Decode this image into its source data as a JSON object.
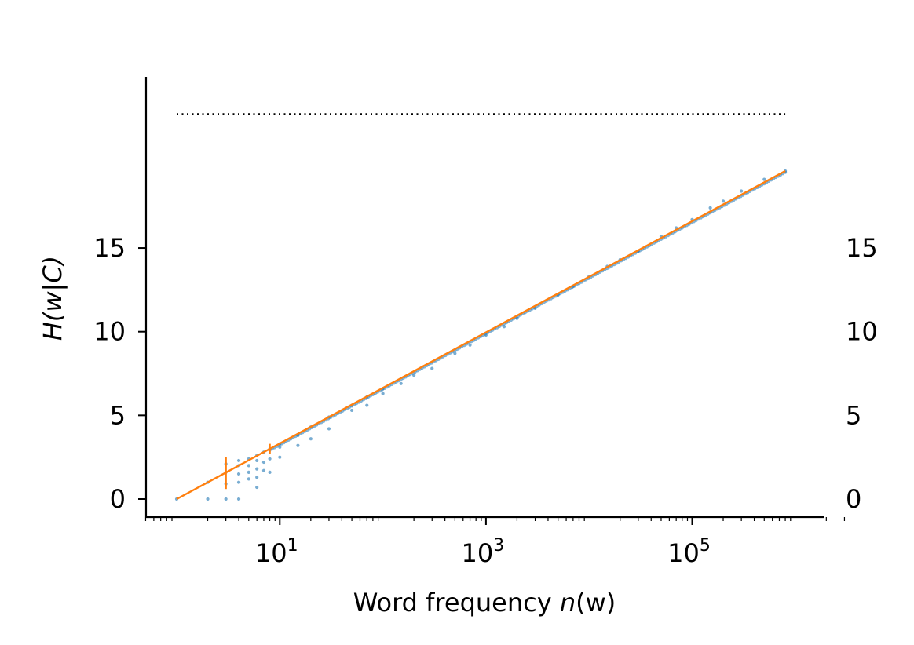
{
  "chart_data": {
    "type": "scatter",
    "xscale": "log",
    "xlim": [
      0.5,
      3000000
    ],
    "ylim": [
      -1,
      25
    ],
    "xlabel": {
      "prefix": "Word frequency ",
      "var": "n",
      "arg": "(w)"
    },
    "ylabel": "H(w|C)",
    "x_ticks": [
      {
        "value": 10,
        "base": "10",
        "exp": "1"
      },
      {
        "value": 1000,
        "base": "10",
        "exp": "3"
      },
      {
        "value": 100000,
        "base": "10",
        "exp": "5"
      }
    ],
    "y_ticks": [
      0,
      5,
      10,
      15
    ],
    "y_ticks_right": [
      "15",
      "10",
      "5",
      "0"
    ],
    "grid": false,
    "legend": "none",
    "colors": {
      "scatter": "#1f77b4",
      "fit": "#ff7f0e",
      "reference": "#000000"
    },
    "reference_line": {
      "style": "dotted",
      "x": [
        1,
        800000
      ],
      "y": 23
    },
    "fit_line": {
      "x": [
        1,
        800000
      ],
      "y": [
        0,
        19.6
      ]
    },
    "error_bars": [
      {
        "x": 3,
        "y": 1.6,
        "low": 0.6,
        "high": 2.5
      },
      {
        "x": 8,
        "y": 3.0,
        "low": 2.7,
        "high": 3.3
      }
    ],
    "series": [
      {
        "points": [
          [
            1,
            0
          ],
          [
            2,
            0
          ],
          [
            2,
            1
          ],
          [
            3,
            0
          ],
          [
            3,
            0.9
          ],
          [
            3,
            1.6
          ],
          [
            3,
            2.1
          ],
          [
            4,
            0
          ],
          [
            4,
            1
          ],
          [
            4,
            1.5
          ],
          [
            4,
            2
          ],
          [
            4,
            2.3
          ],
          [
            5,
            1.2
          ],
          [
            5,
            1.6
          ],
          [
            5,
            2
          ],
          [
            5,
            2.4
          ],
          [
            6,
            0.7
          ],
          [
            6,
            1.3
          ],
          [
            6,
            1.8
          ],
          [
            6,
            2.3
          ],
          [
            6,
            2.6
          ],
          [
            7,
            1.7
          ],
          [
            7,
            2.2
          ],
          [
            7,
            2.8
          ],
          [
            8,
            1.6
          ],
          [
            8,
            2.4
          ],
          [
            8,
            3
          ],
          [
            10,
            2.5
          ],
          [
            10,
            3.1
          ],
          [
            10,
            3.3
          ],
          [
            15,
            3.2
          ],
          [
            15,
            3.8
          ],
          [
            20,
            3.6
          ],
          [
            20,
            4.3
          ],
          [
            30,
            4.2
          ],
          [
            30,
            4.9
          ],
          [
            50,
            5.3
          ],
          [
            50,
            5.6
          ],
          [
            70,
            5.6
          ],
          [
            70,
            6.1
          ],
          [
            100,
            6.3
          ],
          [
            100,
            6.6
          ],
          [
            150,
            6.9
          ],
          [
            200,
            7.4
          ],
          [
            300,
            7.8
          ],
          [
            500,
            8.7
          ],
          [
            700,
            9.2
          ],
          [
            1000,
            9.8
          ],
          [
            1500,
            10.3
          ],
          [
            2000,
            10.8
          ],
          [
            3000,
            11.4
          ],
          [
            5000,
            12.2
          ],
          [
            7000,
            12.7
          ],
          [
            10000,
            13.3
          ],
          [
            15000,
            13.9
          ],
          [
            20000,
            14.3
          ],
          [
            30000,
            14.8
          ],
          [
            50000,
            15.7
          ],
          [
            70000,
            16.2
          ],
          [
            100000,
            16.7
          ],
          [
            150000,
            17.4
          ],
          [
            200000,
            17.8
          ],
          [
            300000,
            18.4
          ],
          [
            500000,
            19.1
          ],
          [
            800000,
            19.6
          ]
        ]
      }
    ]
  }
}
